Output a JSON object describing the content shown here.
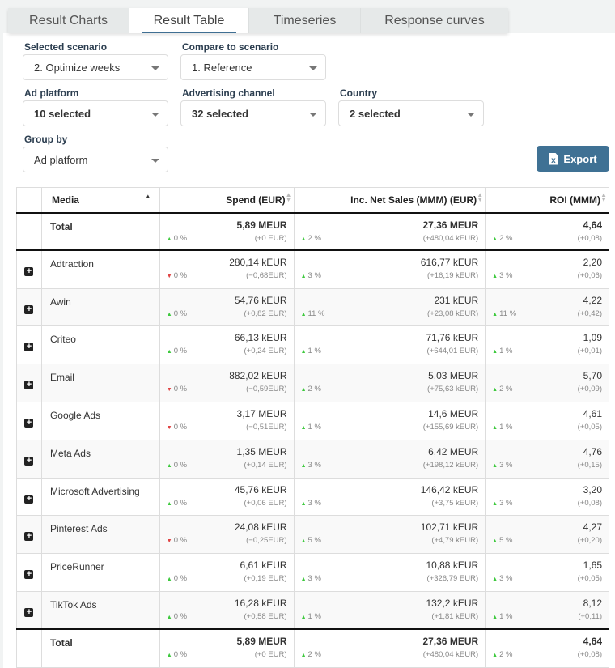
{
  "tabs": [
    {
      "label": "Result Charts",
      "active": false
    },
    {
      "label": "Result Table",
      "active": true
    },
    {
      "label": "Timeseries",
      "active": false
    },
    {
      "label": "Response curves",
      "active": false
    }
  ],
  "filters": {
    "selected_scenario": {
      "label": "Selected scenario",
      "value": "2. Optimize weeks"
    },
    "compare_scenario": {
      "label": "Compare to scenario",
      "value": "1. Reference"
    },
    "ad_platform": {
      "label": "Ad platform",
      "value": "10 selected"
    },
    "advertising_channel": {
      "label": "Advertising channel",
      "value": "32 selected"
    },
    "country": {
      "label": "Country",
      "value": "2 selected"
    },
    "group_by": {
      "label": "Group by",
      "value": "Ad platform"
    }
  },
  "export_label": "Export",
  "colors": {
    "accent": "#3f7194",
    "up": "#3ec93e",
    "down": "#e04545"
  },
  "table": {
    "headers": [
      "Media",
      "Spend (EUR)",
      "Inc. Net Sales (MMM) (EUR)",
      "ROI (MMM)"
    ],
    "total": {
      "name": "Total",
      "cells": [
        [
          "5,89 MEUR",
          "up",
          "0 %",
          "(+0 EUR)"
        ],
        [
          "27,36 MEUR",
          "up",
          "2 %",
          "(+480,04 kEUR)"
        ],
        [
          "4,64",
          "up",
          "2 %",
          "(+0,08)"
        ]
      ]
    },
    "rows": [
      {
        "name": "Adtraction",
        "cells": [
          [
            "280,14 kEUR",
            "down",
            "0 %",
            "(−0,68EUR)"
          ],
          [
            "616,77 kEUR",
            "up",
            "3 %",
            "(+16,19 kEUR)"
          ],
          [
            "2,20",
            "up",
            "3 %",
            "(+0,06)"
          ]
        ]
      },
      {
        "name": "Awin",
        "cells": [
          [
            "54,76 kEUR",
            "up",
            "0 %",
            "(+0,82 EUR)"
          ],
          [
            "231 kEUR",
            "up",
            "11 %",
            "(+23,08 kEUR)"
          ],
          [
            "4,22",
            "up",
            "11 %",
            "(+0,42)"
          ]
        ]
      },
      {
        "name": "Criteo",
        "cells": [
          [
            "66,13 kEUR",
            "up",
            "0 %",
            "(+0,24 EUR)"
          ],
          [
            "71,76 kEUR",
            "up",
            "1 %",
            "(+644,01 EUR)"
          ],
          [
            "1,09",
            "up",
            "1 %",
            "(+0,01)"
          ]
        ]
      },
      {
        "name": "Email",
        "cells": [
          [
            "882,02 kEUR",
            "down",
            "0 %",
            "(−0,59EUR)"
          ],
          [
            "5,03 MEUR",
            "up",
            "2 %",
            "(+75,63 kEUR)"
          ],
          [
            "5,70",
            "up",
            "2 %",
            "(+0,09)"
          ]
        ]
      },
      {
        "name": "Google Ads",
        "cells": [
          [
            "3,17 MEUR",
            "down",
            "0 %",
            "(−0,51EUR)"
          ],
          [
            "14,6 MEUR",
            "up",
            "1 %",
            "(+155,69 kEUR)"
          ],
          [
            "4,61",
            "up",
            "1 %",
            "(+0,05)"
          ]
        ]
      },
      {
        "name": "Meta Ads",
        "cells": [
          [
            "1,35 MEUR",
            "up",
            "0 %",
            "(+0,14 EUR)"
          ],
          [
            "6,42 MEUR",
            "up",
            "3 %",
            "(+198,12 kEUR)"
          ],
          [
            "4,76",
            "up",
            "3 %",
            "(+0,15)"
          ]
        ]
      },
      {
        "name": "Microsoft Advertising",
        "cells": [
          [
            "45,76 kEUR",
            "up",
            "0 %",
            "(+0,06 EUR)"
          ],
          [
            "146,42 kEUR",
            "up",
            "3 %",
            "(+3,75 kEUR)"
          ],
          [
            "3,20",
            "up",
            "3 %",
            "(+0,08)"
          ]
        ]
      },
      {
        "name": "Pinterest Ads",
        "cells": [
          [
            "24,08 kEUR",
            "down",
            "0 %",
            "(−0,25EUR)"
          ],
          [
            "102,71 kEUR",
            "up",
            "5 %",
            "(+4,79 kEUR)"
          ],
          [
            "4,27",
            "up",
            "5 %",
            "(+0,20)"
          ]
        ]
      },
      {
        "name": "PriceRunner",
        "cells": [
          [
            "6,61 kEUR",
            "up",
            "0 %",
            "(+0,19 EUR)"
          ],
          [
            "10,88 kEUR",
            "up",
            "3 %",
            "(+326,79 EUR)"
          ],
          [
            "1,65",
            "up",
            "3 %",
            "(+0,05)"
          ]
        ]
      },
      {
        "name": "TikTok Ads",
        "cells": [
          [
            "16,28 kEUR",
            "up",
            "0 %",
            "(+0,58 EUR)"
          ],
          [
            "132,2 kEUR",
            "up",
            "1 %",
            "(+1,81 kEUR)"
          ],
          [
            "8,12",
            "up",
            "1 %",
            "(+0,11)"
          ]
        ]
      }
    ]
  }
}
